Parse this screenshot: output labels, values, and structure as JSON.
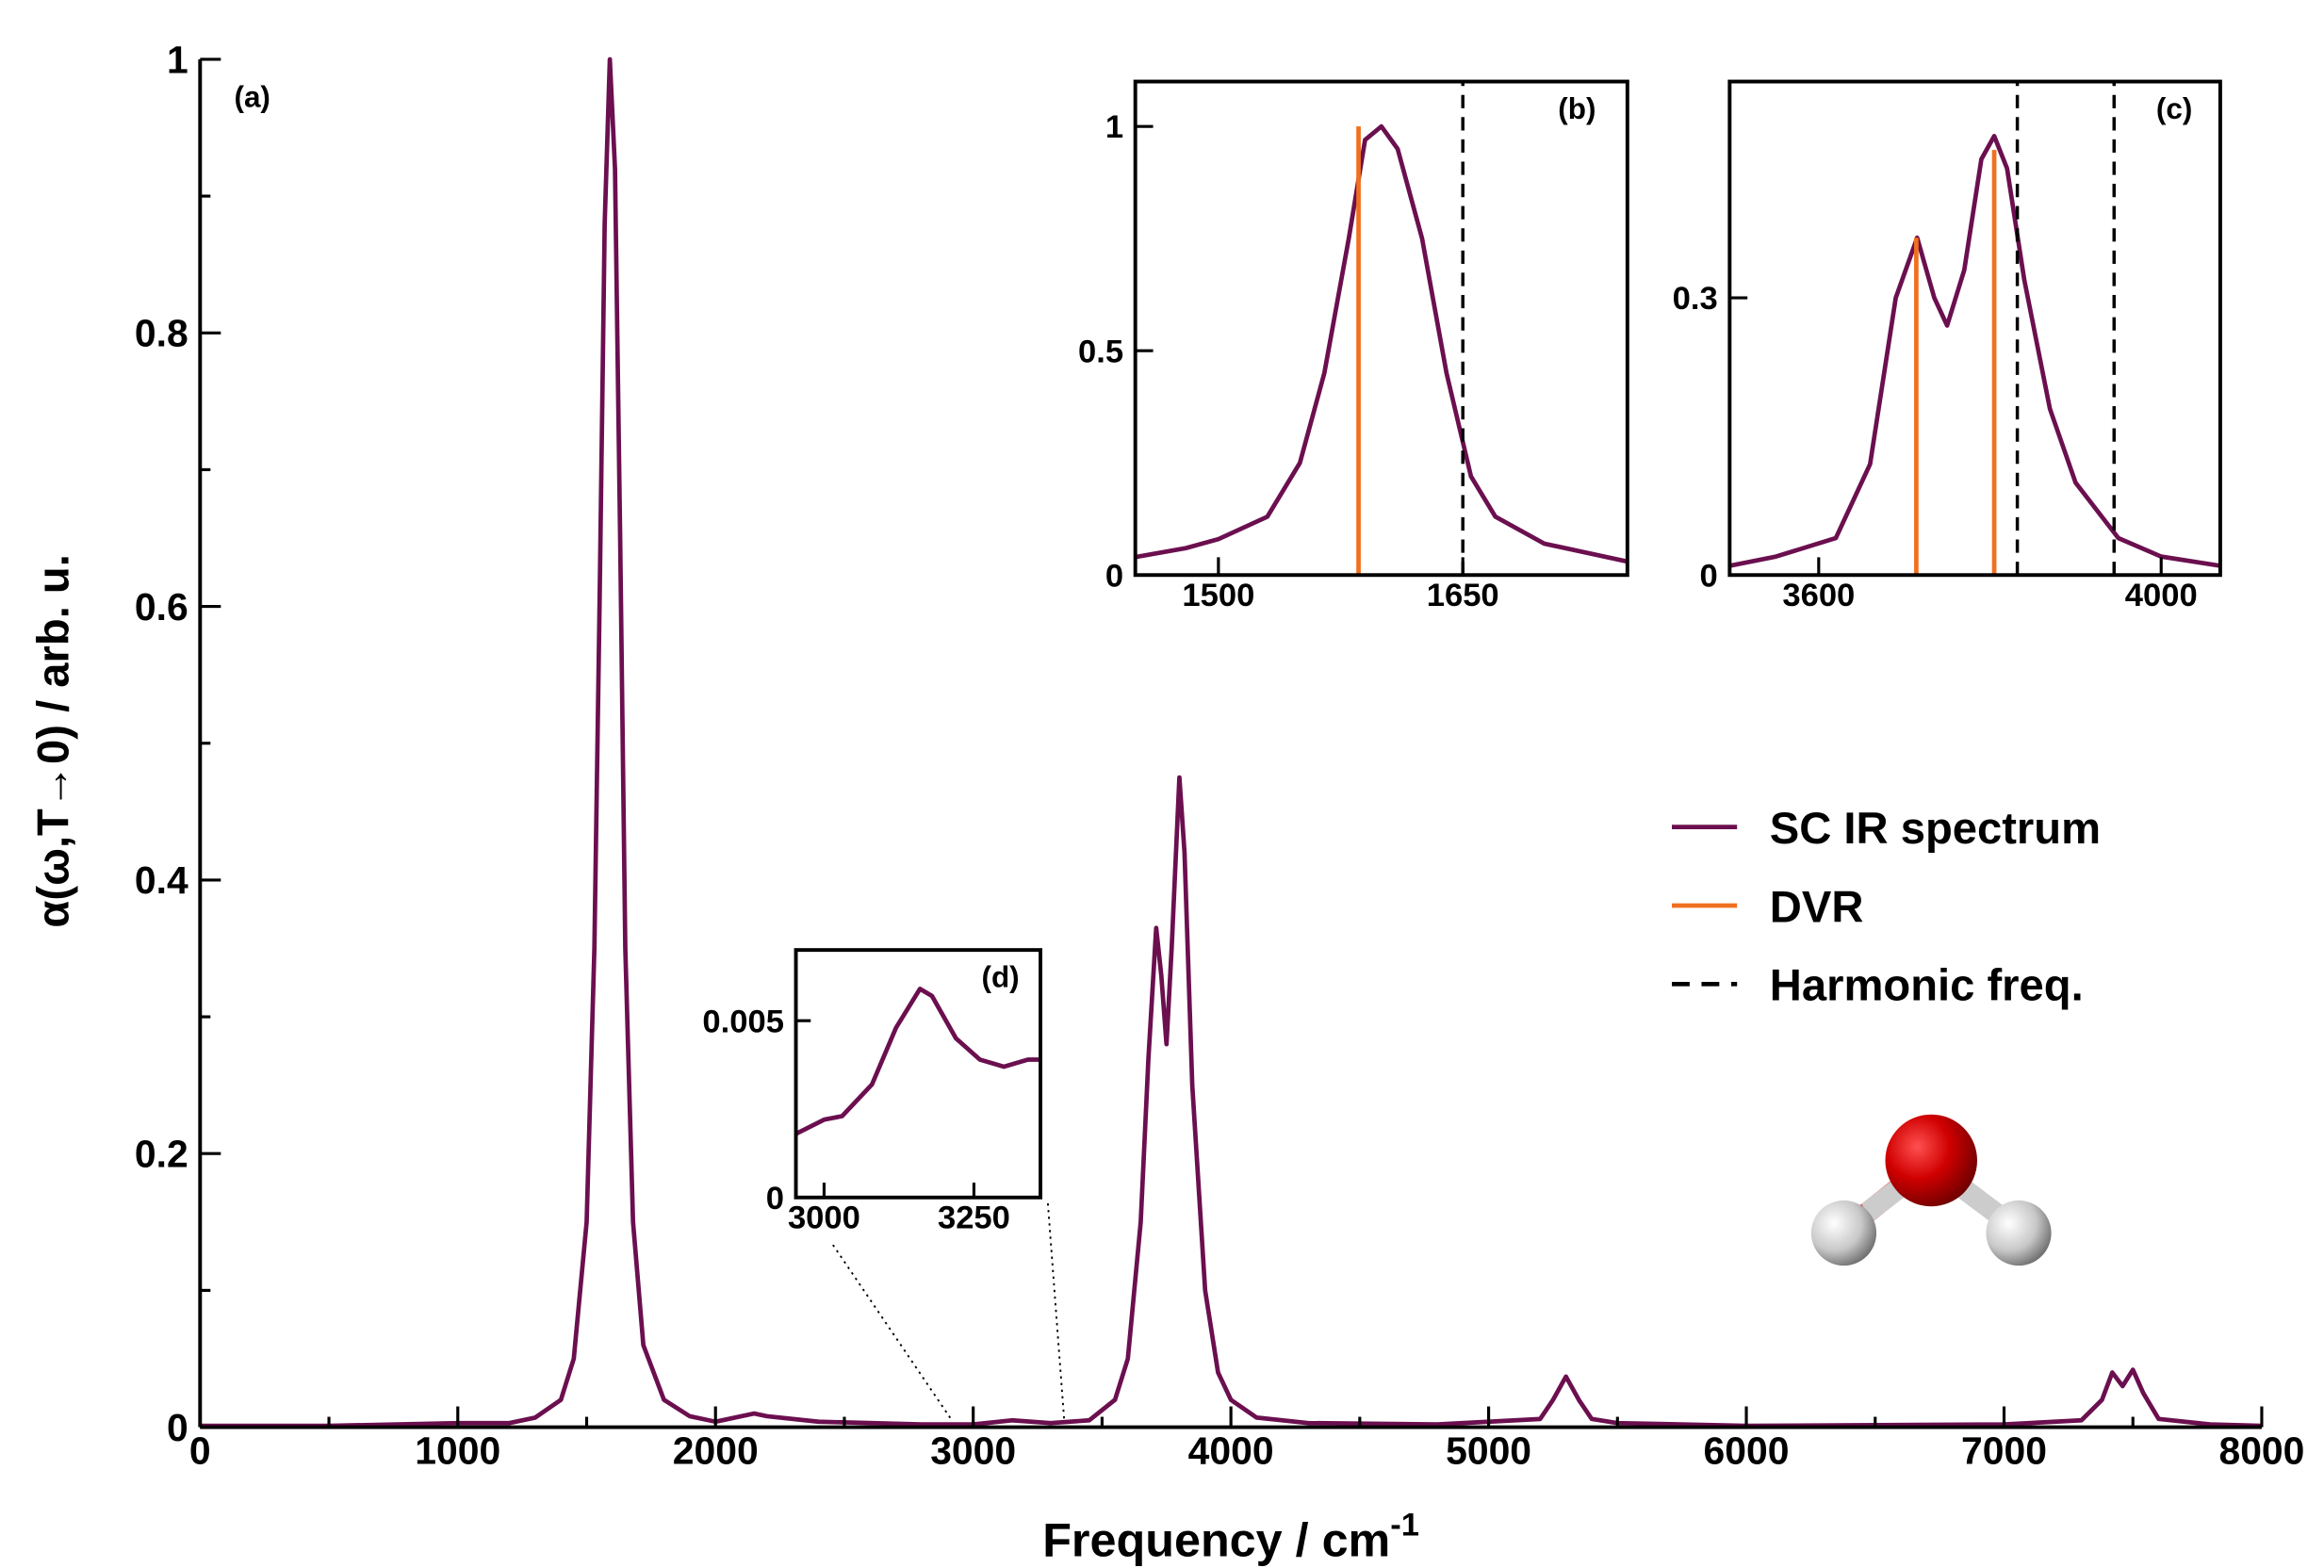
{
  "chart_data": [
    {
      "type": "line",
      "label": "(a)",
      "x_label": "Frequency / cm",
      "x_label_sup": "-1",
      "y_label": "α(ω,T→0) / arb. u.",
      "xlim": [
        0,
        8000
      ],
      "ylim": [
        0,
        1
      ],
      "xticks": [
        0,
        1000,
        2000,
        3000,
        4000,
        5000,
        6000,
        7000,
        8000
      ],
      "yticks": [
        0,
        0.2,
        0.4,
        0.6,
        0.8,
        1
      ],
      "xminorticks": [
        500,
        1500,
        2500,
        3500,
        4500,
        5500,
        6500,
        7500
      ],
      "yminorticks": [
        0.1,
        0.3,
        0.5,
        0.7,
        0.9
      ],
      "series": [
        {
          "name": "SC IR spectrum",
          "color": "#6b0f4f",
          "style": "solid",
          "x": [
            0,
            500,
            1000,
            1200,
            1300,
            1400,
            1450,
            1500,
            1530,
            1550,
            1570,
            1590,
            1610,
            1630,
            1650,
            1680,
            1720,
            1800,
            1900,
            2000,
            2100,
            2150,
            2200,
            2400,
            2800,
            3000,
            3150,
            3300,
            3450,
            3550,
            3600,
            3650,
            3680,
            3710,
            3730,
            3750,
            3770,
            3800,
            3820,
            3850,
            3900,
            3950,
            4000,
            4100,
            4300,
            4800,
            5200,
            5250,
            5300,
            5350,
            5400,
            5500,
            6000,
            7000,
            7300,
            7380,
            7420,
            7460,
            7500,
            7540,
            7600,
            7800,
            8000
          ],
          "values": [
            0.001,
            0.001,
            0.003,
            0.003,
            0.007,
            0.02,
            0.05,
            0.15,
            0.35,
            0.6,
            0.88,
            1.0,
            0.92,
            0.65,
            0.35,
            0.15,
            0.06,
            0.02,
            0.008,
            0.004,
            0.008,
            0.01,
            0.008,
            0.004,
            0.002,
            0.002,
            0.005,
            0.003,
            0.005,
            0.02,
            0.05,
            0.15,
            0.27,
            0.365,
            0.33,
            0.28,
            0.35,
            0.475,
            0.42,
            0.25,
            0.1,
            0.04,
            0.02,
            0.007,
            0.003,
            0.002,
            0.006,
            0.02,
            0.037,
            0.02,
            0.006,
            0.003,
            0.001,
            0.002,
            0.005,
            0.02,
            0.04,
            0.03,
            0.042,
            0.025,
            0.006,
            0.002,
            0.001
          ]
        }
      ]
    },
    {
      "type": "line",
      "label": "(b)",
      "legend": true,
      "xlim": [
        1449,
        1751
      ],
      "ylim": [
        0,
        1.1
      ],
      "xticks": [
        1500,
        1650
      ],
      "yticks": [
        0,
        0.5,
        1
      ],
      "series": [
        {
          "name": "SC IR spectrum",
          "color": "#6b0f4f",
          "style": "solid",
          "x": [
            1449,
            1480,
            1500,
            1530,
            1550,
            1565,
            1580,
            1590,
            1600,
            1610,
            1625,
            1640,
            1655,
            1670,
            1700,
            1751
          ],
          "values": [
            0.04,
            0.06,
            0.08,
            0.13,
            0.25,
            0.45,
            0.75,
            0.97,
            1.0,
            0.95,
            0.75,
            0.45,
            0.22,
            0.13,
            0.07,
            0.03
          ]
        },
        {
          "name": "DVR",
          "color": "#f07020",
          "style": "stick",
          "x": [
            1586
          ],
          "values": [
            1.0
          ]
        },
        {
          "name": "Harmonic freq.",
          "color": "#000000",
          "style": "dashed",
          "x": [
            1650
          ]
        }
      ]
    },
    {
      "type": "line",
      "label": "(c)",
      "xlim": [
        3496,
        4069
      ],
      "ylim": [
        0,
        0.534
      ],
      "xticks": [
        3600,
        4000
      ],
      "yticks": [
        0,
        0.3
      ],
      "series": [
        {
          "name": "SC IR spectrum",
          "color": "#6b0f4f",
          "style": "solid",
          "x": [
            3496,
            3550,
            3620,
            3660,
            3690,
            3715,
            3735,
            3750,
            3770,
            3790,
            3805,
            3820,
            3840,
            3870,
            3900,
            3950,
            4000,
            4069
          ],
          "values": [
            0.01,
            0.02,
            0.04,
            0.12,
            0.3,
            0.365,
            0.3,
            0.27,
            0.33,
            0.45,
            0.475,
            0.44,
            0.32,
            0.18,
            0.1,
            0.04,
            0.02,
            0.01
          ]
        },
        {
          "name": "DVR",
          "color": "#f07020",
          "style": "stick",
          "x": [
            3714,
            3805
          ],
          "values": [
            0.365,
            0.46
          ]
        },
        {
          "name": "Harmonic freq.",
          "color": "#000000",
          "style": "dashed",
          "x": [
            3832,
            3945
          ]
        }
      ]
    },
    {
      "type": "line",
      "label": "(d)",
      "xlim": [
        2953,
        3361
      ],
      "ylim": [
        0,
        0.007
      ],
      "xticks": [
        3000,
        3250
      ],
      "yticks": [
        0,
        0.005
      ],
      "series": [
        {
          "name": "SC IR spectrum",
          "color": "#6b0f4f",
          "style": "solid",
          "x": [
            2953,
            3000,
            3030,
            3080,
            3120,
            3160,
            3180,
            3220,
            3260,
            3300,
            3340,
            3361
          ],
          "values": [
            0.0018,
            0.0022,
            0.0023,
            0.0032,
            0.0048,
            0.0059,
            0.0057,
            0.0045,
            0.0039,
            0.0037,
            0.0039,
            0.0039
          ]
        }
      ]
    }
  ]
}
